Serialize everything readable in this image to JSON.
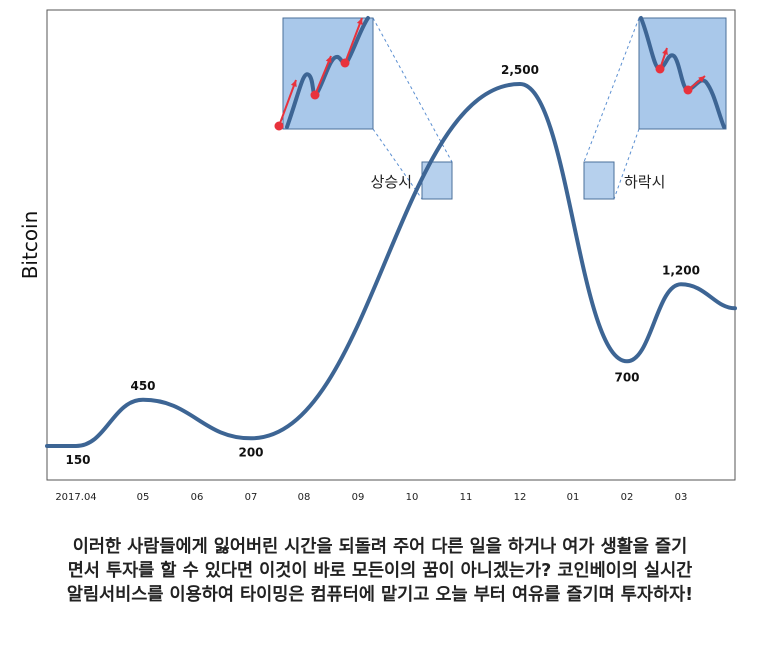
{
  "chart_data": {
    "type": "line",
    "ylabel": "Bitcoin",
    "x_ticks": [
      "2017.04",
      "05",
      "06",
      "07",
      "08",
      "09",
      "10",
      "11",
      "12",
      "01",
      "02",
      "03"
    ],
    "series": [
      {
        "points": [
          {
            "x": "2017.04",
            "y": 150
          },
          {
            "x": "05",
            "y": 450
          },
          {
            "x": "07",
            "y": 200
          },
          {
            "x": "12",
            "y": 2500
          },
          {
            "x": "02",
            "y": 700
          },
          {
            "x": "03",
            "y": 1200
          }
        ]
      }
    ],
    "point_labels": [
      {
        "x": "2017.04",
        "text": "150"
      },
      {
        "x": "05",
        "text": "450"
      },
      {
        "x": "07",
        "text": "200"
      },
      {
        "x": "12",
        "text": "2,500"
      },
      {
        "x": "02",
        "text": "700"
      },
      {
        "x": "03",
        "text": "1,200"
      }
    ],
    "annotations": [
      {
        "label": "상승시",
        "trend": "up"
      },
      {
        "label": "하락시",
        "trend": "down"
      }
    ],
    "grid": false,
    "line_color": "#3d6594",
    "box_color": "#a9c8ea",
    "arrow_color": "#e8323c"
  },
  "caption": {
    "lines": [
      "이러한 사람들에게 잃어버린 시간을 되돌려 주어 다른 일을 하거나 여가 생활을 즐기",
      "면서 투자를 할 수 있다면 이것이 바로 모든이의 꿈이 아니겠는가? 코인베이의 실시간",
      "알림서비스를 이용하여 타이밍은 컴퓨터에 맡기고 오늘 부터 여유를 즐기며 투자하자!"
    ]
  }
}
